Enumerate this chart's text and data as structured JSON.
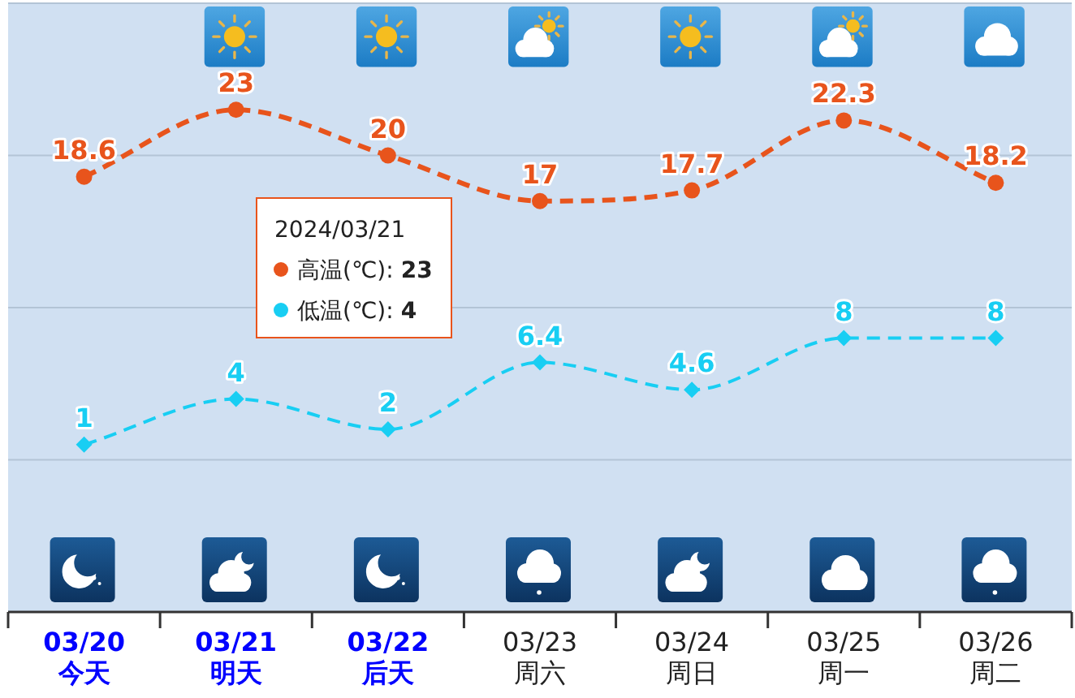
{
  "chart_data": {
    "type": "line",
    "categories": [
      "03/20\n今天",
      "03/21\n明天",
      "03/22\n后天",
      "03/23\n周六",
      "03/24\n周日",
      "03/25\n周一",
      "03/26\n周二"
    ],
    "series": [
      {
        "name": "高温(℃)",
        "color": "#e8541c",
        "marker": "circle",
        "values": [
          18.6,
          23,
          20,
          17,
          17.7,
          22.3,
          18.2
        ]
      },
      {
        "name": "低温(℃)",
        "color": "#18cef3",
        "marker": "diamond",
        "values": [
          1,
          4,
          2,
          6.4,
          4.6,
          8,
          8
        ]
      }
    ],
    "ylim": [
      -10,
      30
    ],
    "yticks": [
      {
        "value": 0,
        "label": null
      },
      {
        "value": 10,
        "label": null
      },
      {
        "value": 20,
        "label": null
      },
      {
        "value": 30,
        "label": null
      }
    ],
    "tick_labels": "x",
    "grid": "y",
    "line_style": "dashed",
    "data_labels": true,
    "legend": "left",
    "legend_title": "2024/03/21",
    "annotations": [
      ": **23**",
      ": **4**"
    ]
  }
}
